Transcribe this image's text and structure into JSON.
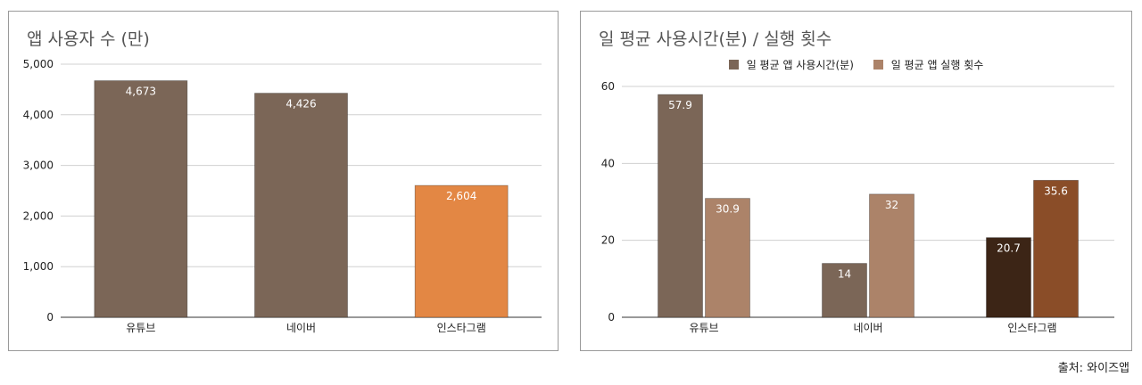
{
  "source": "출처: 와이즈앱",
  "colors": {
    "brown": "#7b6657",
    "orange": "#e38744",
    "light_brown": "#ac8369",
    "dark_brown": "#3c2516",
    "mid_brown": "#8a4d28",
    "grid": "#d0d0d0"
  },
  "chart_data": [
    {
      "type": "bar",
      "title": "앱 사용자 수 (만)",
      "categories": [
        "유튜브",
        "네이버",
        "인스타그램"
      ],
      "values": [
        4673,
        4426,
        2604
      ],
      "value_labels": [
        "4,673",
        "4,426",
        "2,604"
      ],
      "bar_colors": [
        "#7b6657",
        "#7b6657",
        "#e38744"
      ],
      "yticks": [
        0,
        1000,
        2000,
        3000,
        4000,
        5000
      ],
      "ytick_labels": [
        "0",
        "1,000",
        "2,000",
        "3,000",
        "4,000",
        "5,000"
      ],
      "ylim": [
        0,
        5000
      ],
      "grid": true
    },
    {
      "type": "bar",
      "title": "일 평균 사용시간(분) / 실행 횟수",
      "categories": [
        "유튜브",
        "네이버",
        "인스타그램"
      ],
      "legend_position": "top",
      "series": [
        {
          "name": "일 평균 앱 사용시간(분)",
          "values": [
            57.9,
            14,
            20.7
          ],
          "value_labels": [
            "57.9",
            "14",
            "20.7"
          ],
          "color": "#7b6657",
          "bar_colors": [
            "#7b6657",
            "#7b6657",
            "#3c2516"
          ]
        },
        {
          "name": "일 평균 앱 실행 횟수",
          "values": [
            30.9,
            32,
            35.6
          ],
          "value_labels": [
            "30.9",
            "32",
            "35.6"
          ],
          "color": "#ac8369",
          "bar_colors": [
            "#ac8369",
            "#ac8369",
            "#8a4d28"
          ]
        }
      ],
      "yticks": [
        0,
        20,
        40,
        60
      ],
      "ytick_labels": [
        "0",
        "20",
        "40",
        "60"
      ],
      "ylim": [
        0,
        60
      ],
      "grid": true
    }
  ]
}
